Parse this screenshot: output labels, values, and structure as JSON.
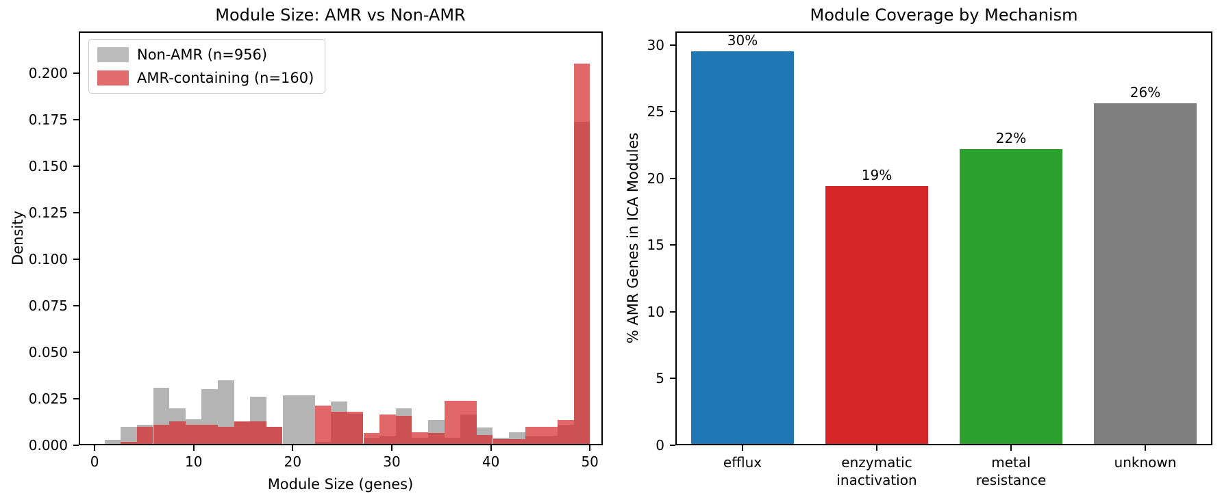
{
  "figure": {
    "background": "#ffffff"
  },
  "chart_data": [
    {
      "type": "bar",
      "subtype": "overlapping-histogram",
      "title": "Module Size: AMR vs Non-AMR",
      "xlabel": "Module Size (genes)",
      "ylabel": "Density",
      "xlim": [
        -1.6,
        51.3
      ],
      "ylim": [
        0,
        0.2224
      ],
      "xticks": [
        0,
        10,
        20,
        30,
        40,
        50
      ],
      "ytick_labels": [
        "0.000",
        "0.025",
        "0.050",
        "0.075",
        "0.100",
        "0.125",
        "0.150",
        "0.175",
        "0.200"
      ],
      "ytick_values": [
        0,
        0.025,
        0.05,
        0.075,
        0.1,
        0.125,
        0.15,
        0.175,
        0.2
      ],
      "grid": false,
      "legend_position": "upper-left",
      "bin_edges": [
        1.0,
        2.63,
        4.27,
        5.9,
        7.53,
        9.17,
        10.8,
        12.43,
        14.07,
        15.7,
        17.33,
        18.97,
        20.6,
        22.23,
        23.87,
        25.5,
        27.13,
        28.77,
        30.4,
        32.03,
        33.67,
        35.3,
        36.93,
        38.57,
        40.2,
        41.83,
        43.47,
        45.1,
        46.73,
        48.37,
        50.0
      ],
      "series": [
        {
          "name": "Non-AMR (n=956)",
          "color": "#b4b4b4",
          "legend_swatch_color": "#bcbcbc",
          "values": [
            0.003,
            0.01,
            0.011,
            0.031,
            0.02,
            0.014,
            0.03,
            0.035,
            0.0125,
            0.026,
            0.01,
            0.027,
            0.027,
            0.002,
            0.0235,
            0.017,
            0.004,
            0.005,
            0.02,
            0.004,
            0.0135,
            0.004,
            0.0165,
            0.0095,
            0.004,
            0.007,
            0.005,
            0.005,
            0.011,
            0.174
          ]
        },
        {
          "name": "AMR-containing (n=160)",
          "color": "rgba(214,39,40,0.7)",
          "legend_swatch_color": "#e06c6c",
          "values": [
            0,
            0.002,
            0.01,
            0.011,
            0.013,
            0.011,
            0.011,
            0.01,
            0.013,
            0.013,
            0.01,
            0,
            0,
            0.0215,
            0.018,
            0.018,
            0.0065,
            0.0165,
            0.016,
            0.007,
            0.0065,
            0.024,
            0.024,
            0.0055,
            0.0035,
            0.0035,
            0.01,
            0.01,
            0.0135,
            0.205
          ]
        }
      ]
    },
    {
      "type": "bar",
      "title": "Module Coverage by Mechanism",
      "xlabel": "",
      "ylabel": "% AMR Genes in ICA Modules",
      "ylim": [
        0,
        31
      ],
      "ytick_values": [
        0,
        5,
        10,
        15,
        20,
        25,
        30
      ],
      "ytick_labels": [
        "0",
        "5",
        "10",
        "15",
        "20",
        "25",
        "30"
      ],
      "grid": false,
      "categories": [
        "efflux",
        "enzymatic\ninactivation",
        "metal\nresistance",
        "unknown"
      ],
      "values": [
        29.5,
        19.4,
        22.2,
        25.6
      ],
      "value_labels": [
        "30%",
        "19%",
        "22%",
        "26%"
      ],
      "bar_colors": [
        "#1f77b4",
        "#d62728",
        "#2ca02c",
        "#7f7f7f"
      ]
    }
  ]
}
